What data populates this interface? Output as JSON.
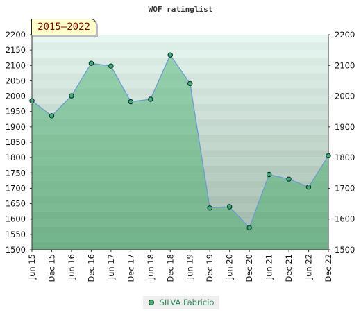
{
  "title": "WOF ratinglist",
  "badge": "2015–2022",
  "legend": {
    "label": "SILVA Fabricio"
  },
  "colors": {
    "line": "#6b9bd1",
    "marker": "#3cb371",
    "accent": "#8b0000"
  },
  "chart_data": {
    "type": "area",
    "title": "WOF ratinglist",
    "categories": [
      "Jun 15",
      "Dec 15",
      "Jun 16",
      "Dec 16",
      "Jun 17",
      "Dec 17",
      "Jun 18",
      "Dec 18",
      "Jun 19",
      "Dec 19",
      "Jun 20",
      "Dec 20",
      "Jun 21",
      "Dec 21",
      "Jun 22",
      "Dec 22"
    ],
    "series": [
      {
        "name": "SILVA Fabricio",
        "values": [
          1985,
          1936,
          2001,
          2107,
          2098,
          1982,
          1990,
          2134,
          2041,
          1636,
          1640,
          1572,
          1745,
          1730,
          1704,
          1806
        ]
      }
    ],
    "ylim": [
      1500,
      2200
    ],
    "yticks": [
      1500,
      1550,
      1600,
      1650,
      1700,
      1750,
      1800,
      1850,
      1900,
      1950,
      2000,
      2050,
      2100,
      2150,
      2200
    ],
    "yticks_right": [
      1500,
      1600,
      1700,
      1800,
      1900,
      2000,
      2100,
      2200
    ],
    "legend_position": "bottom-center"
  }
}
